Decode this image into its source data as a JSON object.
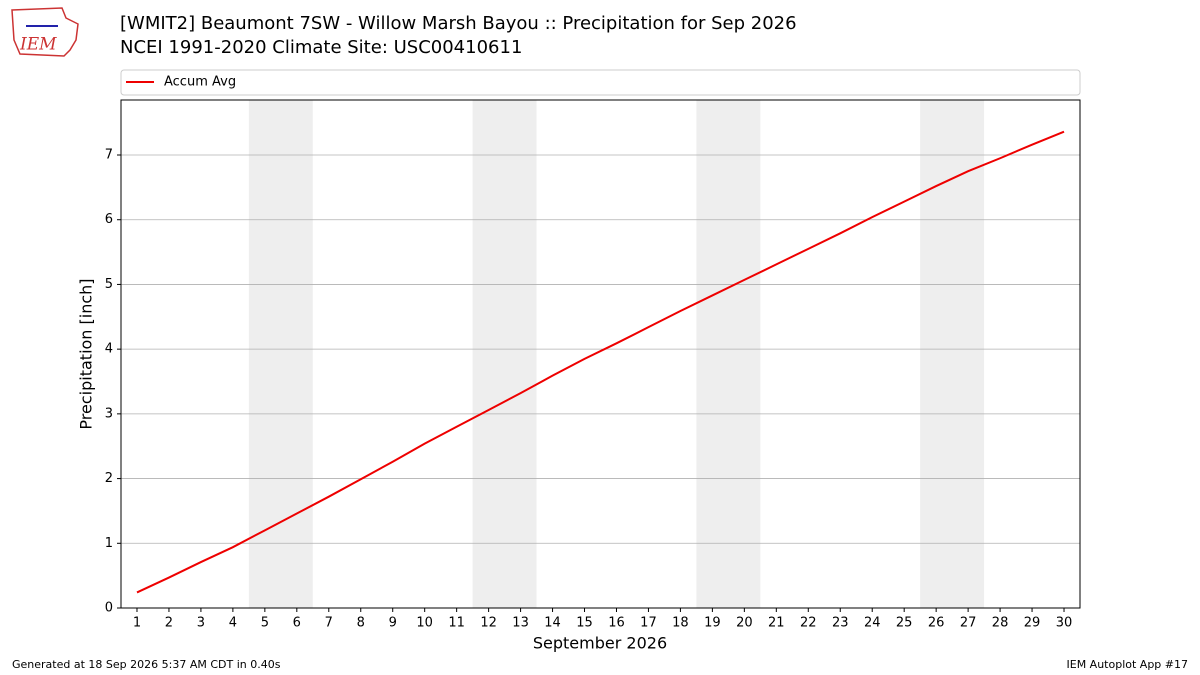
{
  "chart_data": {
    "type": "line",
    "title": "[WMIT2] Beaumont 7SW - Willow Marsh Bayou :: Precipitation for Sep 2026",
    "subtitle": "NCEI 1991-2020 Climate Site: USC00410611",
    "x_label": "September 2026",
    "y_label": "Precipitation [inch]",
    "x": [
      1,
      2,
      3,
      4,
      5,
      6,
      7,
      8,
      9,
      10,
      11,
      12,
      13,
      14,
      15,
      16,
      17,
      18,
      19,
      20,
      21,
      22,
      23,
      24,
      25,
      26,
      27,
      28,
      29,
      30
    ],
    "series": [
      {
        "name": "Accum Avg",
        "color": "#ee0000",
        "values": [
          0.24,
          0.47,
          0.71,
          0.94,
          1.2,
          1.46,
          1.72,
          1.99,
          2.26,
          2.54,
          2.8,
          3.06,
          3.32,
          3.59,
          3.85,
          4.09,
          4.34,
          4.59,
          4.83,
          5.07,
          5.31,
          5.55,
          5.79,
          6.04,
          6.28,
          6.52,
          6.75,
          6.95,
          7.16,
          7.36
        ]
      }
    ],
    "xlim": [
      0.5,
      30.5
    ],
    "ylim": [
      0,
      7.85
    ],
    "xticks": [
      1,
      2,
      3,
      4,
      5,
      6,
      7,
      8,
      9,
      10,
      11,
      12,
      13,
      14,
      15,
      16,
      17,
      18,
      19,
      20,
      21,
      22,
      23,
      24,
      25,
      26,
      27,
      28,
      29,
      30
    ],
    "yticks": [
      0,
      1,
      2,
      3,
      4,
      5,
      6,
      7
    ],
    "grid": true,
    "shaded_spans": [
      [
        4.5,
        6.5
      ],
      [
        11.5,
        13.5
      ],
      [
        18.5,
        20.5
      ],
      [
        25.5,
        27.5
      ]
    ],
    "shade_color": "#eeeeee",
    "legend": "top"
  },
  "logo_text": "IEM",
  "footer_left": "Generated at 18 Sep 2026 5:37 AM CDT in 0.40s",
  "footer_right": "IEM Autoplot App #17"
}
